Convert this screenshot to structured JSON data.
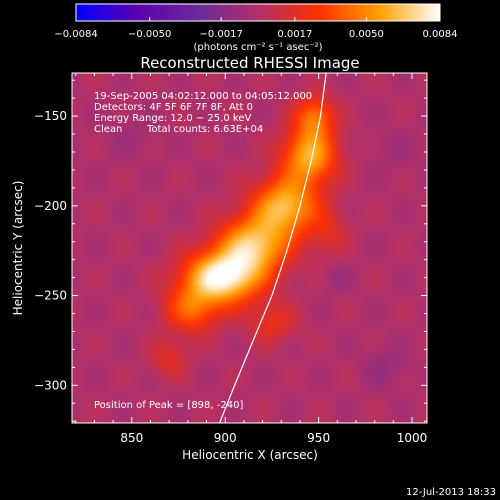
{
  "chart_data": {
    "type": "heatmap",
    "title": "Reconstructed RHESSI Image",
    "xlabel": "Heliocentric X (arcsec)",
    "ylabel": "Heliocentric Y (arcsec)",
    "xlim": [
      818,
      1008
    ],
    "ylim": [
      -321,
      -126
    ],
    "x_ticks": [
      850,
      900,
      950,
      1000
    ],
    "x_tick_labels": [
      "850",
      "900",
      "950",
      "1000"
    ],
    "y_ticks": [
      -150,
      -200,
      -250,
      -300
    ],
    "y_tick_labels": [
      "−150",
      "−200",
      "−250",
      "−300"
    ],
    "colorbar": {
      "range": [
        -0.0084,
        0.0084
      ],
      "ticks": [
        -0.0084,
        -0.005,
        -0.0017,
        0.0017,
        0.005,
        0.0084
      ],
      "tick_labels": [
        "−0.0084",
        "−0.0050",
        "−0.0017",
        "0.0017",
        "0.0050",
        "0.0084"
      ],
      "unit_label": "(photons cm⁻² s⁻¹ asec⁻²)",
      "colors": [
        "#0000ff",
        "#5a00b0",
        "#6b2a9a",
        "#b0306a",
        "#ff3000",
        "#ffa000",
        "#ffffff"
      ]
    },
    "annotations": {
      "time": "19-Sep-2005 04:02:12.000 to 04:05:12.000",
      "detectors": "Detectors: 4F 5F 6F 7F 8F, Att 0",
      "energy": "Energy Range: 12.0 − 25.0 keV",
      "algorithm": "Clean",
      "counts": "Total counts: 6.63E+04",
      "peak": "Position of Peak = [898, -240]"
    },
    "peak": [
      898,
      -240
    ],
    "limb_curve": [
      [
        897,
        -321
      ],
      [
        905,
        -300
      ],
      [
        915,
        -275
      ],
      [
        925,
        -250
      ],
      [
        933,
        -225
      ],
      [
        940,
        -200
      ],
      [
        946,
        -175
      ],
      [
        951,
        -150
      ],
      [
        954,
        -126
      ]
    ],
    "sources": [
      {
        "x": 898,
        "y": -240,
        "sx": 14,
        "sy": 10,
        "amp": 1.0
      },
      {
        "x": 915,
        "y": -222,
        "sx": 13,
        "sy": 11,
        "amp": 0.78
      },
      {
        "x": 932,
        "y": -200,
        "sx": 12,
        "sy": 11,
        "amp": 0.75
      },
      {
        "x": 945,
        "y": -172,
        "sx": 10,
        "sy": 11,
        "amp": 0.72
      },
      {
        "x": 948,
        "y": -150,
        "sx": 7,
        "sy": 8,
        "amp": 0.5
      },
      {
        "x": 882,
        "y": -258,
        "sx": 10,
        "sy": 9,
        "amp": 0.45
      },
      {
        "x": 870,
        "y": -285,
        "sx": 7,
        "sy": 7,
        "amp": 0.22
      },
      {
        "x": 925,
        "y": -265,
        "sx": 9,
        "sy": 8,
        "amp": 0.25
      },
      {
        "x": 955,
        "y": -215,
        "sx": 7,
        "sy": 9,
        "amp": 0.2
      },
      {
        "x": 960,
        "y": -240,
        "sx": 5,
        "sy": 5,
        "amp": -0.1
      },
      {
        "x": 985,
        "y": -290,
        "sx": 8,
        "sy": 8,
        "amp": -0.12
      },
      {
        "x": 850,
        "y": -160,
        "sx": 10,
        "sy": 10,
        "amp": -0.06
      },
      {
        "x": 990,
        "y": -170,
        "sx": 9,
        "sy": 9,
        "amp": -0.06
      }
    ],
    "grid": false
  },
  "timestamp": "12-Jul-2013 18:33"
}
